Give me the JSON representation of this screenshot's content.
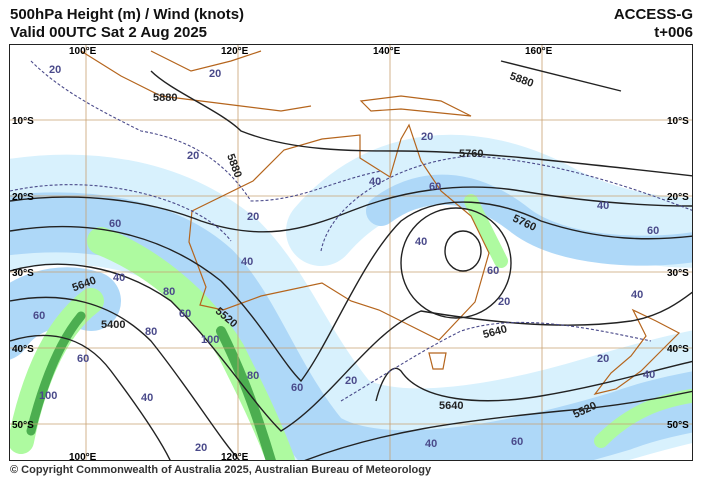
{
  "header": {
    "title": "500hPa Height (m) / Wind (knots)",
    "valid": "Valid 00UTC Sat 2 Aug 2025",
    "model": "ACCESS-G",
    "lead_time": "t+006"
  },
  "footer": {
    "copyright": "© Copyright Commonwealth of Australia 2025, Australian Bureau of Meteorology"
  },
  "grid": {
    "lon_labels": [
      "100°E",
      "120°E",
      "140°E",
      "160°E"
    ],
    "lat_labels": [
      "10°S",
      "20°S",
      "30°S",
      "40°S",
      "50°S"
    ]
  },
  "legend_colors": {
    "wind_40_60": "#d8f1fd",
    "wind_60_80": "#aed8f8",
    "wind_80_100": "#aefaa0",
    "wind_100_plus": "#4cae50",
    "coastline": "#b5651d",
    "height_contour": "#222222",
    "isotach": "#4a4a8a"
  },
  "height_labels": [
    "5880",
    "5880",
    "5880",
    "5760",
    "5640",
    "5520",
    "5400",
    "5640",
    "5640",
    "5520"
  ],
  "wind_labels": [
    "20",
    "20",
    "20",
    "20",
    "40",
    "60",
    "60",
    "40",
    "60",
    "40",
    "80",
    "60",
    "100",
    "80",
    "60",
    "100",
    "80",
    "60",
    "40",
    "20",
    "20",
    "40",
    "60",
    "40",
    "60",
    "40",
    "20",
    "40",
    "20",
    "40",
    "60",
    "20"
  ]
}
